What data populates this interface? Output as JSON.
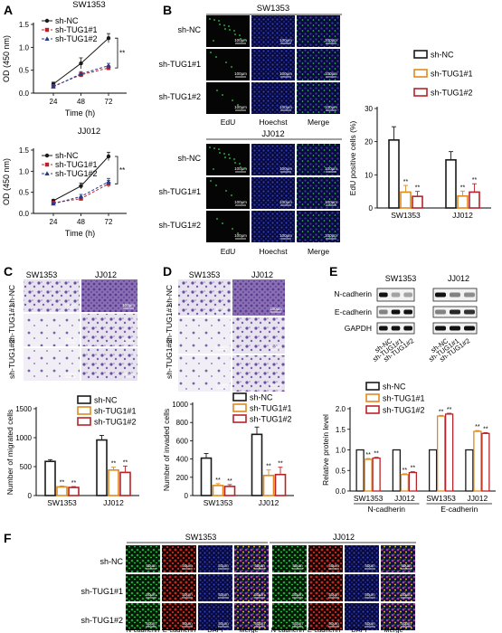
{
  "panel_letters": [
    "A",
    "B",
    "C",
    "D",
    "E",
    "F"
  ],
  "colors": {
    "nc": "#1a1a1a",
    "t1": "#e08a1e",
    "t2": "#b8232a",
    "red_err": "#c0392b",
    "grid": "#000"
  },
  "groups": [
    "sh-NC",
    "sh-TUG1#1",
    "sh-TUG1#2"
  ],
  "cell_lines": [
    "SW1353",
    "JJ012"
  ],
  "sig": "**",
  "scale": {
    "um100": "100μm",
    "um50": "50μm"
  },
  "panel_B": {
    "stain_labels": [
      "EdU",
      "Hoechst",
      "Merge"
    ]
  },
  "panel_E": {
    "blot_labels": [
      "N-cadherin",
      "E-cadherin",
      "GAPDH"
    ],
    "lane_labels": [
      "sh-NC",
      "sh-TUG1#1",
      "sh-TUG1#2"
    ]
  },
  "panel_F": {
    "stain_labels": [
      "N-cadherin",
      "E-cadherin",
      "DAPI",
      "Merge"
    ]
  },
  "chart_data": [
    {
      "id": "A_top",
      "type": "line",
      "title": "SW1353",
      "xlabel": "Time (h)",
      "ylabel": "OD (450 nm)",
      "x": [
        24,
        48,
        72
      ],
      "ylim": [
        0,
        1.5
      ],
      "yticks": [
        0,
        0.5,
        1.0,
        1.5
      ],
      "series": [
        {
          "name": "sh-NC",
          "values": [
            0.2,
            0.65,
            1.2
          ],
          "err": [
            0.04,
            0.12,
            0.1
          ]
        },
        {
          "name": "sh-TUG1#1",
          "values": [
            0.15,
            0.4,
            0.55
          ],
          "err": [
            0.03,
            0.05,
            0.05
          ]
        },
        {
          "name": "sh-TUG1#2",
          "values": [
            0.14,
            0.42,
            0.6
          ],
          "err": [
            0.03,
            0.05,
            0.05
          ]
        }
      ]
    },
    {
      "id": "A_bottom",
      "type": "line",
      "title": "JJ012",
      "xlabel": "Time (h)",
      "ylabel": "OD (450 nm)",
      "x": [
        24,
        48,
        72
      ],
      "ylim": [
        0,
        1.5
      ],
      "yticks": [
        0,
        0.5,
        1.0,
        1.5
      ],
      "series": [
        {
          "name": "sh-NC",
          "values": [
            0.3,
            0.65,
            1.35
          ],
          "err": [
            0.03,
            0.07,
            0.1
          ]
        },
        {
          "name": "sh-TUG1#1",
          "values": [
            0.25,
            0.35,
            0.7
          ],
          "err": [
            0.02,
            0.04,
            0.08
          ]
        },
        {
          "name": "sh-TUG1#2",
          "values": [
            0.23,
            0.4,
            0.75
          ],
          "err": [
            0.02,
            0.05,
            0.08
          ]
        }
      ]
    },
    {
      "id": "B",
      "type": "bar",
      "ylabel": "EdU positive cells (%)",
      "categories": [
        "SW1353",
        "JJ012"
      ],
      "ylim": [
        0,
        30
      ],
      "yticks": [
        0,
        10,
        20,
        30
      ],
      "series": [
        {
          "name": "sh-NC",
          "values": [
            20.5,
            14.5
          ],
          "err": [
            4,
            2.5
          ]
        },
        {
          "name": "sh-TUG1#1",
          "values": [
            4.8,
            3.6
          ],
          "err": [
            2,
            1.5
          ]
        },
        {
          "name": "sh-TUG1#2",
          "values": [
            3.5,
            4.8
          ],
          "err": [
            1.5,
            2.5
          ]
        }
      ]
    },
    {
      "id": "C",
      "type": "bar",
      "ylabel": "Number of migrated cells",
      "categories": [
        "SW1353",
        "JJ012"
      ],
      "ylim": [
        0,
        1500
      ],
      "yticks": [
        0,
        500,
        1000,
        1500
      ],
      "series": [
        {
          "name": "sh-NC",
          "values": [
            590,
            960
          ],
          "err": [
            30,
            80
          ]
        },
        {
          "name": "sh-TUG1#1",
          "values": [
            150,
            440
          ],
          "err": [
            15,
            50
          ]
        },
        {
          "name": "sh-TUG1#2",
          "values": [
            140,
            400
          ],
          "err": [
            15,
            110
          ]
        }
      ]
    },
    {
      "id": "D",
      "type": "bar",
      "ylabel": "Number of invaded cells",
      "categories": [
        "SW1353",
        "JJ012"
      ],
      "ylim": [
        0,
        1000
      ],
      "yticks": [
        0,
        200,
        400,
        600,
        800,
        1000
      ],
      "series": [
        {
          "name": "sh-NC",
          "values": [
            410,
            670
          ],
          "err": [
            50,
            80
          ]
        },
        {
          "name": "sh-TUG1#1",
          "values": [
            110,
            220
          ],
          "err": [
            20,
            60
          ]
        },
        {
          "name": "sh-TUG1#2",
          "values": [
            100,
            230
          ],
          "err": [
            20,
            80
          ]
        }
      ]
    },
    {
      "id": "E",
      "type": "bar",
      "ylabel": "Relative protein level",
      "categories": [
        "SW1353",
        "JJ012",
        "SW1353",
        "JJ012"
      ],
      "category_groups": [
        "N-cadherin",
        "E-cadherin"
      ],
      "ylim": [
        0,
        2.0
      ],
      "yticks": [
        0,
        0.5,
        1.0,
        1.5,
        2.0
      ],
      "series": [
        {
          "name": "sh-NC",
          "values": [
            1.0,
            1.0,
            1.0,
            1.0
          ],
          "err": [
            0,
            0,
            0,
            0
          ]
        },
        {
          "name": "sh-TUG1#1",
          "values": [
            0.77,
            0.4,
            1.82,
            1.45
          ],
          "err": [
            0.02,
            0.02,
            0.02,
            0.02
          ]
        },
        {
          "name": "sh-TUG1#2",
          "values": [
            0.8,
            0.45,
            1.87,
            1.4
          ],
          "err": [
            0.02,
            0.02,
            0.02,
            0.02
          ]
        }
      ]
    }
  ]
}
